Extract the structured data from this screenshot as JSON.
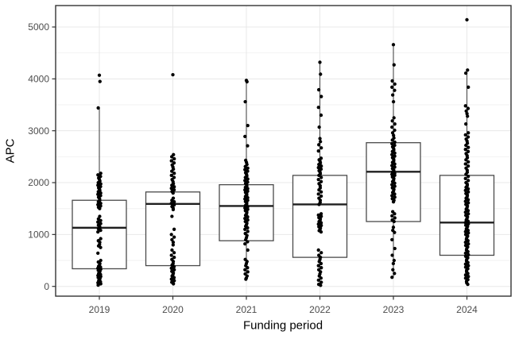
{
  "chart_data": {
    "type": "boxplot",
    "title": "",
    "xlabel": "Funding period",
    "ylabel": "APC",
    "categories": [
      "2019",
      "2020",
      "2021",
      "2022",
      "2023",
      "2024"
    ],
    "y_ticks": [
      0,
      1000,
      2000,
      3000,
      4000,
      5000
    ],
    "y_minor_ticks": [
      500,
      1500,
      2500,
      3500,
      4500
    ],
    "ylim": [
      -190,
      5420
    ],
    "grid": "major-and-minor-horizontal, major-vertical-at-categories",
    "legend": "none",
    "boxes": [
      {
        "category": "2019",
        "whisker_low": 25,
        "q1": 340,
        "median": 1130,
        "q3": 1660,
        "whisker_high": 3440,
        "outliers": [
          3950,
          4070
        ],
        "points": [
          4070,
          3950,
          3440,
          2180,
          2150,
          2120,
          2090,
          2060,
          2030,
          2000,
          1975,
          1950,
          1925,
          1900,
          1875,
          1850,
          1825,
          1800,
          1775,
          1750,
          1720,
          1690,
          1660,
          1630,
          1600,
          1575,
          1550,
          1525,
          1500,
          1350,
          1300,
          1270,
          1240,
          1210,
          1180,
          1150,
          1130,
          1110,
          1080,
          1050,
          920,
          880,
          850,
          810,
          780,
          750,
          640,
          500,
          470,
          440,
          410,
          390,
          370,
          350,
          330,
          310,
          290,
          270,
          250,
          230,
          210,
          190,
          170,
          150,
          130,
          110,
          90,
          70,
          50,
          25
        ]
      },
      {
        "category": "2020",
        "whisker_low": 40,
        "q1": 400,
        "median": 1590,
        "q3": 1820,
        "whisker_high": 2540,
        "outliers": [
          4080
        ],
        "points": [
          4080,
          2540,
          2500,
          2460,
          2420,
          2380,
          2340,
          2300,
          2260,
          2220,
          2180,
          2140,
          2100,
          2060,
          2020,
          1980,
          1950,
          1920,
          1890,
          1860,
          1830,
          1800,
          1700,
          1660,
          1630,
          1600,
          1570,
          1540,
          1510,
          1480,
          1350,
          1100,
          1000,
          950,
          900,
          850,
          800,
          700,
          650,
          600,
          560,
          520,
          480,
          440,
          410,
          380,
          350,
          320,
          290,
          260,
          230,
          200,
          170,
          140,
          110,
          80,
          50
        ]
      },
      {
        "category": "2021",
        "whisker_low": 140,
        "q1": 880,
        "median": 1550,
        "q3": 1960,
        "whisker_high": 3970,
        "outliers": [],
        "points": [
          3970,
          3945,
          3560,
          3100,
          2890,
          2710,
          2430,
          2390,
          2350,
          2310,
          2280,
          2250,
          2220,
          2190,
          2160,
          2130,
          2100,
          2070,
          2040,
          2010,
          1985,
          1960,
          1935,
          1910,
          1885,
          1860,
          1835,
          1810,
          1785,
          1760,
          1735,
          1710,
          1685,
          1660,
          1635,
          1610,
          1585,
          1560,
          1535,
          1510,
          1485,
          1460,
          1430,
          1400,
          1370,
          1340,
          1310,
          1280,
          1250,
          1220,
          1190,
          1160,
          1130,
          1100,
          1060,
          1020,
          980,
          940,
          900,
          860,
          820,
          700,
          520,
          480,
          440,
          400,
          360,
          320,
          280,
          240,
          200,
          160,
          140
        ]
      },
      {
        "category": "2022",
        "whisker_low": 20,
        "q1": 560,
        "median": 1580,
        "q3": 2140,
        "whisker_high": 4320,
        "outliers": [],
        "points": [
          4320,
          4090,
          3790,
          3660,
          3450,
          3300,
          3070,
          2850,
          2790,
          2730,
          2670,
          2610,
          2470,
          2440,
          2410,
          2380,
          2350,
          2320,
          2290,
          2260,
          2230,
          2200,
          2170,
          2140,
          2100,
          2060,
          2020,
          1980,
          1940,
          1900,
          1860,
          1820,
          1780,
          1740,
          1700,
          1660,
          1620,
          1580,
          1400,
          1375,
          1350,
          1325,
          1300,
          1275,
          1250,
          1225,
          1200,
          1175,
          1150,
          1125,
          1100,
          1075,
          1050,
          700,
          650,
          600,
          560,
          520,
          480,
          440,
          400,
          360,
          320,
          280,
          240,
          200,
          160,
          120,
          80,
          40,
          20
        ]
      },
      {
        "category": "2023",
        "whisker_low": 175,
        "q1": 1250,
        "median": 2210,
        "q3": 2770,
        "whisker_high": 4660,
        "outliers": [],
        "points": [
          4660,
          4270,
          3960,
          3900,
          3840,
          3780,
          3690,
          3560,
          3250,
          3190,
          3130,
          3070,
          3010,
          2960,
          2910,
          2860,
          2820,
          2780,
          2750,
          2720,
          2690,
          2660,
          2630,
          2600,
          2570,
          2540,
          2510,
          2480,
          2450,
          2420,
          2390,
          2360,
          2330,
          2300,
          2270,
          2240,
          2220,
          2200,
          2180,
          2160,
          2140,
          2110,
          2080,
          2050,
          2020,
          1990,
          1960,
          1930,
          1900,
          1870,
          1840,
          1810,
          1780,
          1750,
          1720,
          1690,
          1660,
          1630,
          1440,
          1400,
          1360,
          1320,
          1280,
          1250,
          1140,
          1080,
          1040,
          900,
          730,
          600,
          500,
          440,
          320,
          250,
          175
        ]
      },
      {
        "category": "2024",
        "whisker_low": 40,
        "q1": 600,
        "median": 1230,
        "q3": 2140,
        "whisker_high": 4170,
        "outliers": [
          5140
        ],
        "points": [
          5140,
          4170,
          4110,
          3840,
          3480,
          3430,
          3380,
          3330,
          3280,
          3130,
          2960,
          2920,
          2880,
          2840,
          2800,
          2760,
          2720,
          2680,
          2640,
          2600,
          2560,
          2520,
          2480,
          2440,
          2400,
          2360,
          2320,
          2280,
          2240,
          2200,
          2160,
          2120,
          2080,
          2040,
          2000,
          1970,
          1940,
          1910,
          1880,
          1850,
          1820,
          1790,
          1760,
          1730,
          1700,
          1670,
          1640,
          1610,
          1580,
          1550,
          1520,
          1490,
          1460,
          1430,
          1400,
          1370,
          1340,
          1310,
          1280,
          1255,
          1230,
          1205,
          1180,
          1155,
          1130,
          1105,
          1080,
          1055,
          1030,
          1000,
          970,
          940,
          910,
          880,
          850,
          820,
          790,
          760,
          730,
          700,
          670,
          640,
          610,
          580,
          550,
          520,
          490,
          460,
          430,
          400,
          370,
          340,
          310,
          280,
          250,
          220,
          190,
          160,
          130,
          100,
          70,
          40
        ]
      }
    ]
  },
  "colors": {
    "background": "#ffffff",
    "panel_border": "#333333",
    "grid_major": "#e8e8e8",
    "grid_minor": "#f2f2f2",
    "box_stroke": "#4a4a4a",
    "median_stroke": "#1f1f1f",
    "point_fill": "#000000",
    "tick_label": "#4d4d4d",
    "axis_title": "#000000"
  }
}
